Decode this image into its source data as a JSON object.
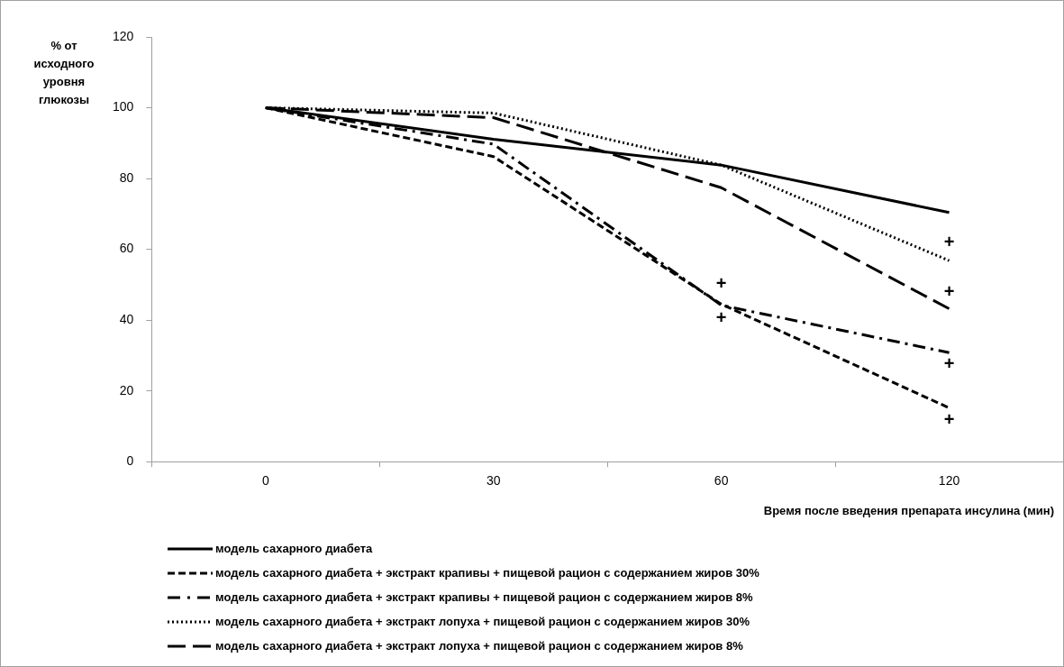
{
  "chart_data": {
    "type": "line",
    "xlabel": "Время после введения препарата инсулина (мин)",
    "ylabel": "% от исходного уровня глюкозы",
    "categories": [
      "0",
      "30",
      "60",
      "120"
    ],
    "ylim": [
      0,
      120
    ],
    "yticks": [
      0,
      20,
      40,
      60,
      80,
      100,
      120
    ],
    "grid": false,
    "legend": "bottom",
    "marker": "none",
    "series": [
      {
        "name": "модель сахарного диабета",
        "color": "#000000",
        "line_style": "solid",
        "values": [
          100,
          91.1,
          83.8,
          70.4
        ]
      },
      {
        "name": "модель сахарного диабета + экстракт крапивы + пищевой рацион с содержанием жиров 30%",
        "color": "#000000",
        "line_style": "dashed",
        "values": [
          100,
          86.2,
          44.5,
          15.2
        ]
      },
      {
        "name": "модель сахарного диабета + экстракт крапивы + пищевой рацион с содержанием жиров 8%",
        "color": "#000000",
        "line_style": "dashdot",
        "values": [
          100,
          89.7,
          44.2,
          30.8
        ]
      },
      {
        "name": "модель сахарного диабета + экстракт лопуха + пищевой рацион с содержанием жиров 30%",
        "color": "#000000",
        "line_style": "dotted",
        "values": [
          100,
          98.5,
          83.8,
          56.8
        ]
      },
      {
        "name": "модель сахарного диабета + экстракт лопуха + пищевой рацион с содержанием жиров 8%",
        "color": "#000000",
        "line_style": "longdash",
        "values": [
          100,
          97.2,
          77.4,
          43.2
        ]
      }
    ],
    "annotations": [
      {
        "text": "+",
        "x": "60",
        "y": 44.2
      },
      {
        "text": "+",
        "x": "60",
        "y": 44.5
      },
      {
        "text": "+",
        "x": "120",
        "y": 56.8
      },
      {
        "text": "+",
        "x": "120",
        "y": 43.2
      },
      {
        "text": "+",
        "x": "120",
        "y": 30.8
      },
      {
        "text": "+",
        "x": "120",
        "y": 15.2
      }
    ]
  }
}
